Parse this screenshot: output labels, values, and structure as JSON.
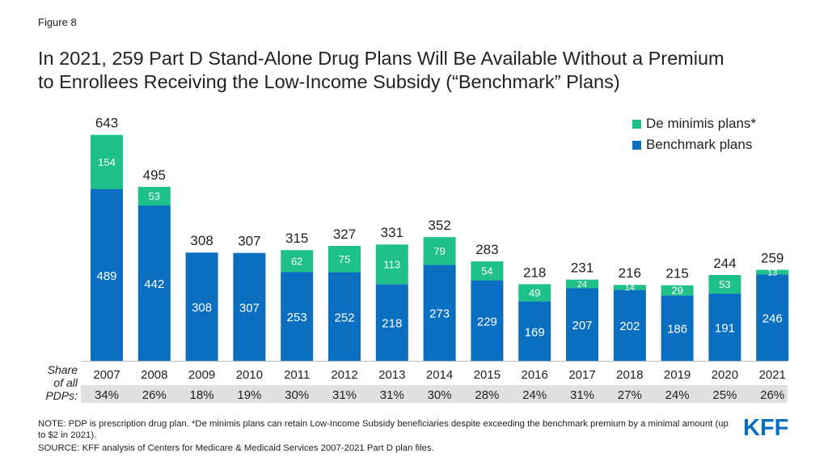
{
  "figure_label": "Figure 8",
  "title_lines": [
    "In 2021, 259 Part D Stand-Alone Drug Plans Will Be Available Without a Premium",
    "to Enrollees Receiving the Low-Income Subsidy (“Benchmark” Plans)"
  ],
  "legend": {
    "de_minimis": "De minimis plans*",
    "benchmark": "Benchmark plans"
  },
  "share_caption": [
    "Share",
    "of all",
    "PDPs:"
  ],
  "note": "NOTE: PDP is prescription drug plan. *De minimis plans can retain Low-Income Subsidy beneficiaries despite exceeding the benchmark premium by a minimal amount (up to $2 in 2021).",
  "source": "SOURCE: KFF analysis of Centers for Medicare & Medicaid Services 2007-2021 Part D plan files.",
  "logo_text": "KFF",
  "colors": {
    "benchmark": "#0b6fc1",
    "de_minimis": "#1fc18a",
    "share_strip": "#e0e0e0",
    "logo": "#0b6fc1"
  },
  "chart_data": {
    "type": "bar",
    "stacked": true,
    "categories": [
      "2007",
      "2008",
      "2009",
      "2010",
      "2011",
      "2012",
      "2013",
      "2014",
      "2015",
      "2016",
      "2017",
      "2018",
      "2019",
      "2020",
      "2021"
    ],
    "series": [
      {
        "name": "Benchmark plans",
        "values": [
          489,
          442,
          308,
          307,
          253,
          252,
          218,
          273,
          229,
          169,
          207,
          202,
          186,
          191,
          246
        ]
      },
      {
        "name": "De minimis plans*",
        "values": [
          154,
          53,
          0,
          0,
          62,
          75,
          113,
          79,
          54,
          49,
          24,
          14,
          29,
          53,
          13
        ]
      }
    ],
    "totals": [
      643,
      495,
      308,
      307,
      315,
      327,
      331,
      352,
      283,
      218,
      231,
      216,
      215,
      244,
      259
    ],
    "share_of_all_pdps": [
      "34%",
      "26%",
      "18%",
      "19%",
      "30%",
      "31%",
      "31%",
      "30%",
      "28%",
      "24%",
      "31%",
      "27%",
      "24%",
      "25%",
      "26%"
    ],
    "legend_position": "top-right",
    "grid": false
  }
}
